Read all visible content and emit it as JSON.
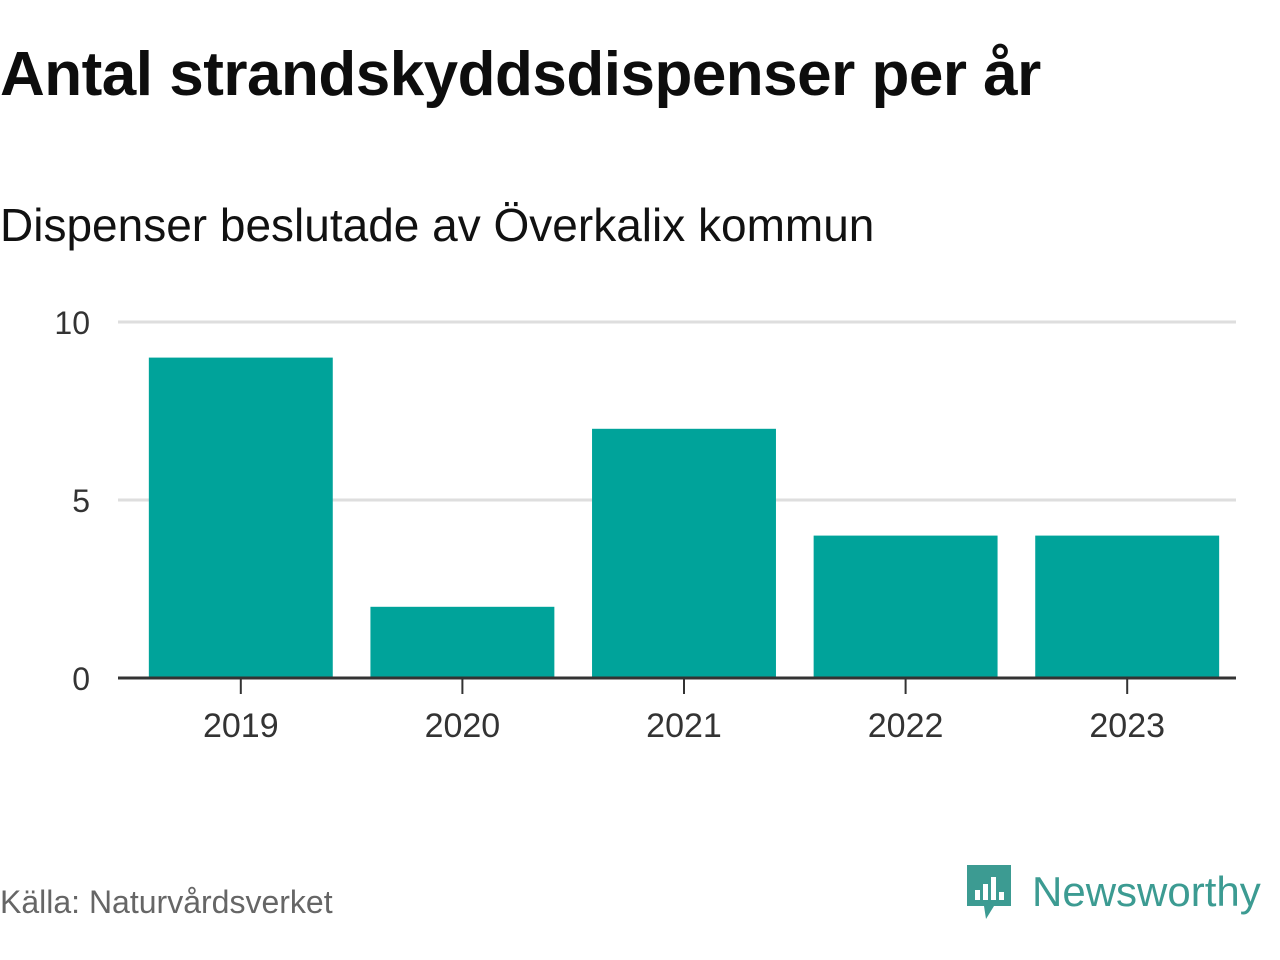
{
  "header": {
    "title": "Antal strandskyddsdispenser per år",
    "subtitle": "Dispenser beslutade av Överkalix kommun"
  },
  "footer": {
    "source": "Källa: Naturvårdsverket",
    "brand": "Newsworthy",
    "brand_icon": "newsworthy-logo-icon"
  },
  "colors": {
    "bar": "#00a39a",
    "grid": "#dedede",
    "axis": "#333333",
    "brand": "#3c9b92",
    "text": "#111111",
    "muted": "#666666"
  },
  "chart_data": {
    "type": "bar",
    "title": "Antal strandskyddsdispenser per år",
    "subtitle": "Dispenser beslutade av Överkalix kommun",
    "categories": [
      "2019",
      "2020",
      "2021",
      "2022",
      "2023"
    ],
    "values": [
      9,
      2,
      7,
      4,
      4
    ],
    "xlabel": "",
    "ylabel": "",
    "ylim": [
      0,
      10
    ],
    "yticks": [
      0,
      5,
      10
    ],
    "grid": true,
    "legend": "none"
  }
}
